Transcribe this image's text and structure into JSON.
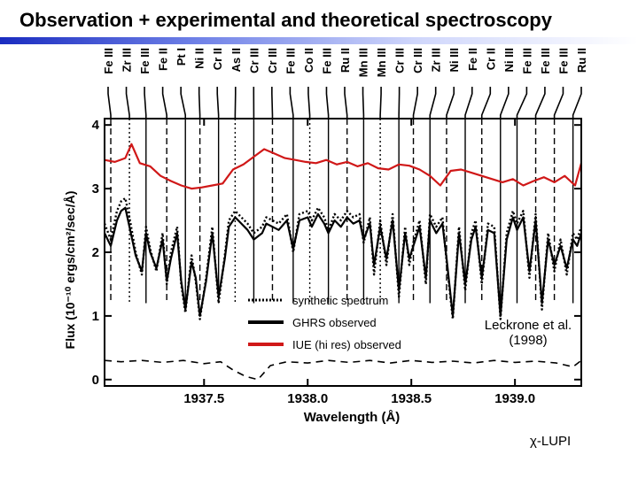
{
  "slide": {
    "title": "Observation + experimental and theoretical spectroscopy",
    "citation_line1": "Leckrone et al.",
    "citation_line2": "(1998)",
    "star_name": "χ-LUPI"
  },
  "chart_data": {
    "type": "line",
    "title": "",
    "xlabel": "Wavelength (Å)",
    "ylabel": "Flux (10⁻¹⁰ ergs/cm²/sec/Å)",
    "xlim": [
      1937.02,
      1939.32
    ],
    "ylim": [
      -0.1,
      4.1
    ],
    "x_ticks": [
      {
        "value": 1937.5,
        "label": "1937.5"
      },
      {
        "value": 1938.0,
        "label": "1938.0"
      },
      {
        "value": 1938.5,
        "label": "1938.5"
      },
      {
        "value": 1939.0,
        "label": "1939.0"
      }
    ],
    "y_ticks": [
      {
        "value": 0,
        "label": "0"
      },
      {
        "value": 1,
        "label": "1"
      },
      {
        "value": 2,
        "label": "2"
      },
      {
        "value": 3,
        "label": "3"
      },
      {
        "value": 4,
        "label": "4"
      }
    ],
    "legend": [
      {
        "label": "synthetic spectrum",
        "style": "dotted",
        "color": "#000000"
      },
      {
        "label": "GHRS observed",
        "style": "solid",
        "color": "#000000"
      },
      {
        "label": "IUE (hi res) observed",
        "style": "solid",
        "color": "#d01818"
      }
    ],
    "line_ids": [
      {
        "label": "Fe III",
        "x": 1937.05,
        "style": "dashed"
      },
      {
        "label": "Zr III",
        "x": 1937.14,
        "style": "dotted"
      },
      {
        "label": "Fe III",
        "x": 1937.22,
        "style": "solid"
      },
      {
        "label": "Fe II",
        "x": 1937.32,
        "style": "dashed"
      },
      {
        "label": "Pt I",
        "x": 1937.41,
        "style": "solid"
      },
      {
        "label": "Ni II",
        "x": 1937.48,
        "style": "dashed"
      },
      {
        "label": "Cr II",
        "x": 1937.57,
        "style": "solid"
      },
      {
        "label": "As II",
        "x": 1937.65,
        "style": "dotted"
      },
      {
        "label": "Cr III",
        "x": 1937.74,
        "style": "solid"
      },
      {
        "label": "Cr III",
        "x": 1937.83,
        "style": "dashed"
      },
      {
        "label": "Fe III",
        "x": 1937.93,
        "style": "solid"
      },
      {
        "label": "Co II",
        "x": 1938.01,
        "style": "dotted"
      },
      {
        "label": "Fe III",
        "x": 1938.1,
        "style": "solid"
      },
      {
        "label": "Ru II",
        "x": 1938.19,
        "style": "dashed"
      },
      {
        "label": "Mn III",
        "x": 1938.27,
        "style": "solid"
      },
      {
        "label": "Mn III",
        "x": 1938.35,
        "style": "dotted"
      },
      {
        "label": "Cr III",
        "x": 1938.44,
        "style": "solid"
      },
      {
        "label": "Cr III",
        "x": 1938.51,
        "style": "dashed"
      },
      {
        "label": "Zr III",
        "x": 1938.59,
        "style": "solid"
      },
      {
        "label": "Ni III",
        "x": 1938.67,
        "style": "dashed"
      },
      {
        "label": "Fe II",
        "x": 1938.76,
        "style": "solid"
      },
      {
        "label": "Cr II",
        "x": 1938.84,
        "style": "dashed"
      },
      {
        "label": "Ni III",
        "x": 1938.93,
        "style": "solid"
      },
      {
        "label": "Fe III",
        "x": 1939.01,
        "style": "solid"
      },
      {
        "label": "Fe III",
        "x": 1939.1,
        "style": "dashed"
      },
      {
        "label": "Fe III",
        "x": 1939.19,
        "style": "dashed"
      },
      {
        "label": "Ru II",
        "x": 1939.28,
        "style": "solid"
      }
    ],
    "series": [
      {
        "name": "IUE (hi res) observed",
        "color": "#d01818",
        "style": "solid",
        "x": [
          1937.02,
          1937.07,
          1937.12,
          1937.15,
          1937.19,
          1937.24,
          1937.29,
          1937.34,
          1937.39,
          1937.44,
          1937.49,
          1937.54,
          1937.59,
          1937.64,
          1937.69,
          1937.74,
          1937.79,
          1937.84,
          1937.89,
          1937.94,
          1937.99,
          1938.04,
          1938.09,
          1938.14,
          1938.19,
          1938.24,
          1938.29,
          1938.34,
          1938.39,
          1938.44,
          1938.49,
          1938.54,
          1938.59,
          1938.64,
          1938.69,
          1938.74,
          1938.79,
          1938.84,
          1938.89,
          1938.94,
          1938.99,
          1939.04,
          1939.09,
          1939.14,
          1939.19,
          1939.24,
          1939.29,
          1939.32
        ],
        "values": [
          3.45,
          3.42,
          3.48,
          3.7,
          3.4,
          3.35,
          3.2,
          3.12,
          3.05,
          3.0,
          3.02,
          3.05,
          3.08,
          3.3,
          3.38,
          3.5,
          3.62,
          3.55,
          3.48,
          3.45,
          3.42,
          3.4,
          3.45,
          3.38,
          3.42,
          3.35,
          3.4,
          3.32,
          3.3,
          3.38,
          3.36,
          3.3,
          3.2,
          3.05,
          3.28,
          3.3,
          3.25,
          3.2,
          3.15,
          3.1,
          3.15,
          3.05,
          3.12,
          3.18,
          3.1,
          3.2,
          3.05,
          3.4
        ]
      },
      {
        "name": "GHRS observed",
        "color": "#000000",
        "style": "solid",
        "x": [
          1937.02,
          1937.05,
          1937.08,
          1937.1,
          1937.12,
          1937.14,
          1937.17,
          1937.2,
          1937.22,
          1937.24,
          1937.27,
          1937.3,
          1937.32,
          1937.34,
          1937.37,
          1937.39,
          1937.41,
          1937.44,
          1937.46,
          1937.48,
          1937.51,
          1937.54,
          1937.57,
          1937.6,
          1937.62,
          1937.65,
          1937.68,
          1937.71,
          1937.74,
          1937.78,
          1937.8,
          1937.83,
          1937.86,
          1937.9,
          1937.93,
          1937.96,
          1938.0,
          1938.02,
          1938.05,
          1938.08,
          1938.1,
          1938.13,
          1938.16,
          1938.19,
          1938.22,
          1938.25,
          1938.27,
          1938.3,
          1938.32,
          1938.35,
          1938.38,
          1938.41,
          1938.44,
          1938.47,
          1938.49,
          1938.51,
          1938.54,
          1938.57,
          1938.59,
          1938.62,
          1938.65,
          1938.67,
          1938.7,
          1938.73,
          1938.76,
          1938.79,
          1938.81,
          1938.84,
          1938.87,
          1938.9,
          1938.93,
          1938.96,
          1938.99,
          1939.01,
          1939.04,
          1939.07,
          1939.1,
          1939.13,
          1939.16,
          1939.19,
          1939.22,
          1939.25,
          1939.28,
          1939.3,
          1939.32
        ],
        "values": [
          2.3,
          2.1,
          2.5,
          2.65,
          2.7,
          2.4,
          1.95,
          1.7,
          2.3,
          2.0,
          1.75,
          2.2,
          1.55,
          1.9,
          2.3,
          1.55,
          1.1,
          1.85,
          1.6,
          1.0,
          1.55,
          2.3,
          1.3,
          1.9,
          2.4,
          2.55,
          2.45,
          2.35,
          2.2,
          2.3,
          2.45,
          2.4,
          2.35,
          2.5,
          2.05,
          2.5,
          2.55,
          2.4,
          2.6,
          2.45,
          2.3,
          2.5,
          2.4,
          2.55,
          2.45,
          2.5,
          2.2,
          2.45,
          1.8,
          2.4,
          1.9,
          2.5,
          1.4,
          2.3,
          1.9,
          2.1,
          2.4,
          1.6,
          2.5,
          2.3,
          2.45,
          1.9,
          1.0,
          2.3,
          1.5,
          2.2,
          2.4,
          1.6,
          2.35,
          2.3,
          1.0,
          2.2,
          2.55,
          2.35,
          2.55,
          1.7,
          2.5,
          1.2,
          2.2,
          1.8,
          2.1,
          1.75,
          2.2,
          2.1,
          2.3
        ]
      },
      {
        "name": "synthetic spectrum",
        "color": "#000000",
        "style": "dotted",
        "x": [
          1937.02,
          1937.05,
          1937.08,
          1937.1,
          1937.12,
          1937.14,
          1937.17,
          1937.2,
          1937.22,
          1937.24,
          1937.27,
          1937.3,
          1937.32,
          1937.34,
          1937.37,
          1937.39,
          1937.41,
          1937.44,
          1937.46,
          1937.48,
          1937.51,
          1937.54,
          1937.57,
          1937.6,
          1937.62,
          1937.65,
          1937.68,
          1937.71,
          1937.74,
          1937.78,
          1937.8,
          1937.83,
          1937.86,
          1937.9,
          1937.93,
          1937.96,
          1938.0,
          1938.02,
          1938.05,
          1938.08,
          1938.1,
          1938.13,
          1938.16,
          1938.19,
          1938.22,
          1938.25,
          1938.27,
          1938.3,
          1938.32,
          1938.35,
          1938.38,
          1938.41,
          1938.44,
          1938.47,
          1938.49,
          1938.51,
          1938.54,
          1938.57,
          1938.59,
          1938.62,
          1938.65,
          1938.67,
          1938.7,
          1938.73,
          1938.76,
          1938.79,
          1938.81,
          1938.84,
          1938.87,
          1938.9,
          1938.93,
          1938.96,
          1938.99,
          1939.01,
          1939.04,
          1939.07,
          1939.1,
          1939.13,
          1939.16,
          1939.19,
          1939.22,
          1939.25,
          1939.28,
          1939.3,
          1939.32
        ],
        "values": [
          2.45,
          2.2,
          2.65,
          2.8,
          2.85,
          2.55,
          2.0,
          1.65,
          2.4,
          2.05,
          1.7,
          2.3,
          1.5,
          2.0,
          2.4,
          1.5,
          1.05,
          1.95,
          1.55,
          0.95,
          1.6,
          2.4,
          1.2,
          1.95,
          2.5,
          2.65,
          2.55,
          2.45,
          2.3,
          2.4,
          2.55,
          2.5,
          2.45,
          2.6,
          2.0,
          2.6,
          2.65,
          2.5,
          2.7,
          2.55,
          2.35,
          2.6,
          2.5,
          2.65,
          2.55,
          2.6,
          2.15,
          2.55,
          1.65,
          2.5,
          1.8,
          2.6,
          1.3,
          2.4,
          1.8,
          2.15,
          2.5,
          1.5,
          2.6,
          2.4,
          2.55,
          1.85,
          0.95,
          2.4,
          1.4,
          2.3,
          2.5,
          1.5,
          2.45,
          2.4,
          0.95,
          2.3,
          2.65,
          2.45,
          2.65,
          1.6,
          2.6,
          1.1,
          2.3,
          1.7,
          2.2,
          1.65,
          2.3,
          2.2,
          2.4
        ]
      },
      {
        "name": "residual",
        "color": "#000000",
        "style": "dashed",
        "x": [
          1937.02,
          1937.1,
          1937.2,
          1937.3,
          1937.4,
          1937.5,
          1937.58,
          1937.64,
          1937.7,
          1937.76,
          1937.82,
          1937.9,
          1938.0,
          1938.1,
          1938.2,
          1938.3,
          1938.4,
          1938.5,
          1938.6,
          1938.7,
          1938.8,
          1938.9,
          1939.0,
          1939.1,
          1939.2,
          1939.28,
          1939.32
        ],
        "values": [
          0.3,
          0.28,
          0.3,
          0.27,
          0.3,
          0.25,
          0.28,
          0.15,
          0.05,
          0.0,
          0.22,
          0.28,
          0.26,
          0.3,
          0.27,
          0.3,
          0.26,
          0.3,
          0.27,
          0.29,
          0.26,
          0.3,
          0.27,
          0.29,
          0.26,
          0.2,
          0.3
        ]
      }
    ]
  }
}
